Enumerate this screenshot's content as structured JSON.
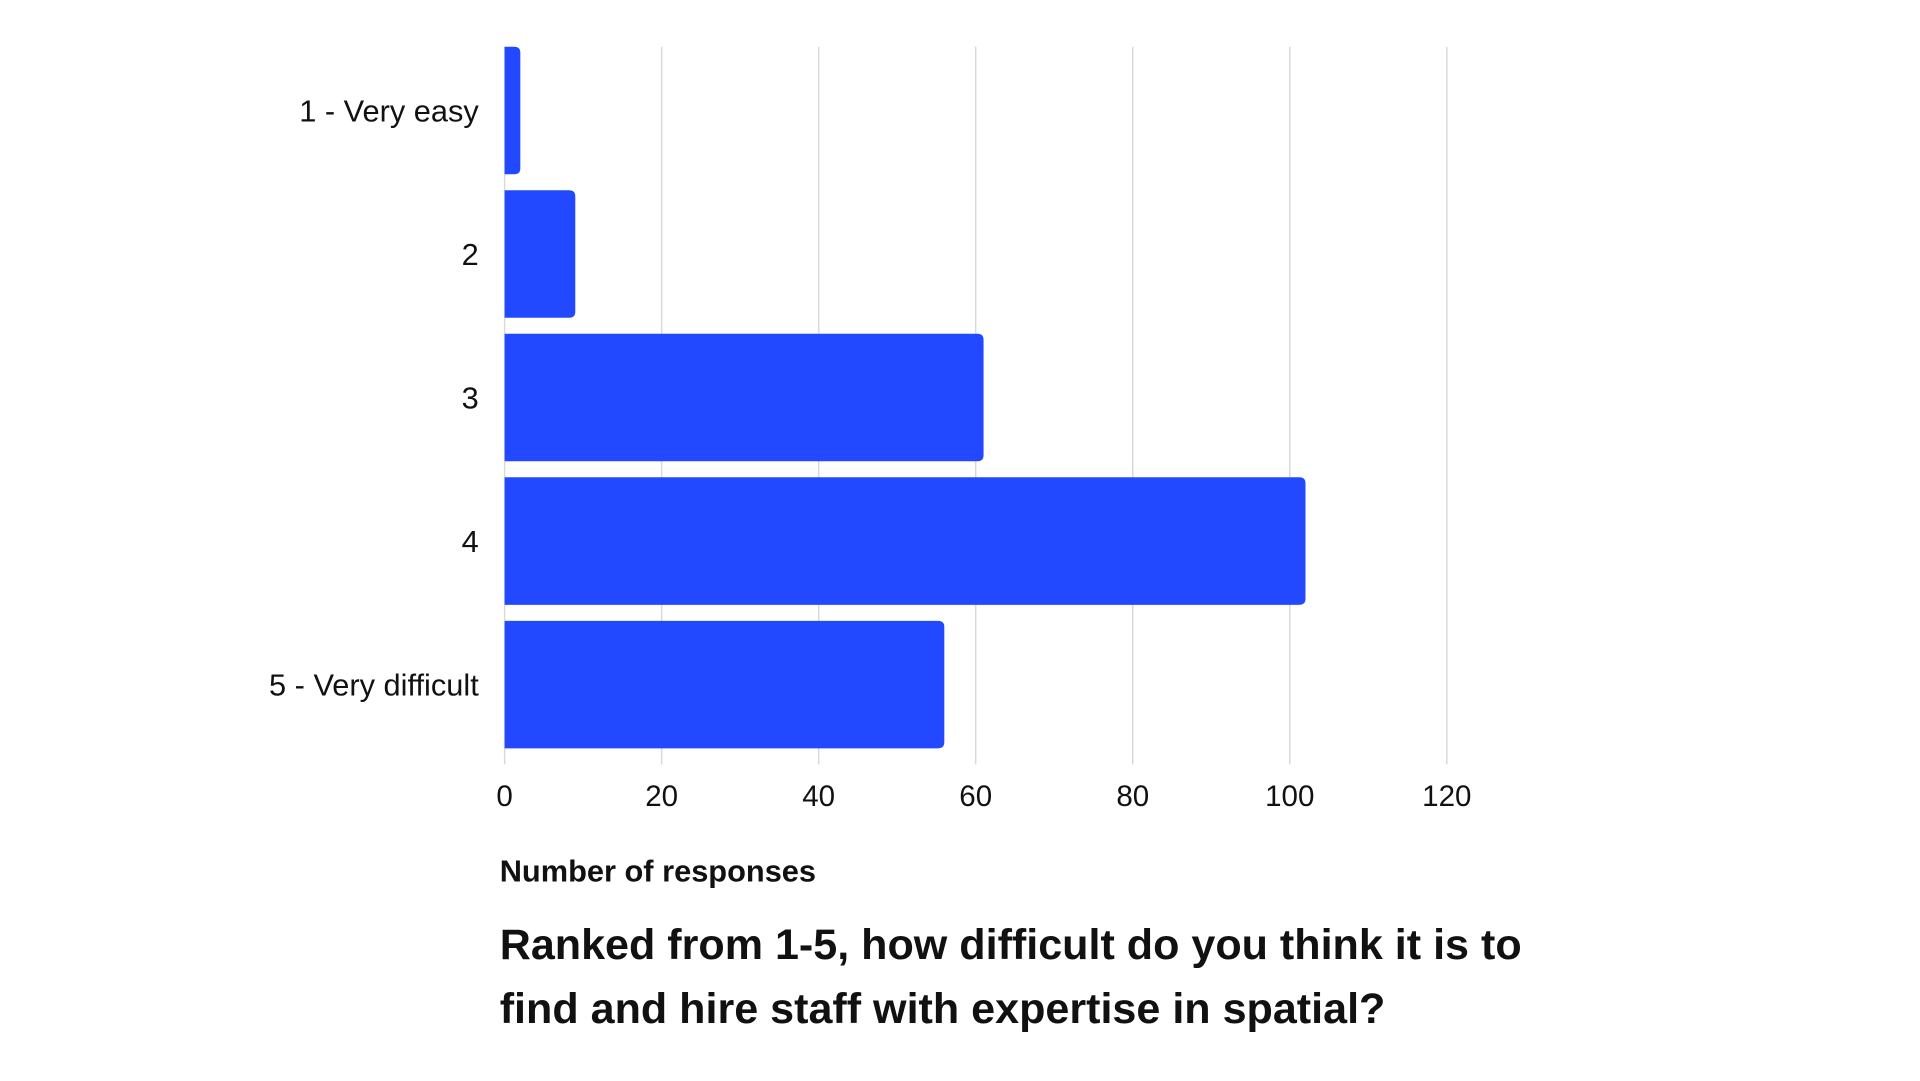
{
  "chart_data": {
    "type": "bar",
    "orientation": "horizontal",
    "categories": [
      "1 - Very easy",
      "2",
      "3",
      "4",
      "5 - Very difficult"
    ],
    "values": [
      2,
      9,
      61,
      102,
      56
    ],
    "xlabel": "Number of responses",
    "title": "Ranked from 1-5, how difficult do you think it is to find and hire staff with expertise in spatial?",
    "xlim": [
      0,
      120
    ],
    "xticks": [
      0,
      20,
      40,
      60,
      80,
      100,
      120
    ],
    "grid": "vertical",
    "bar_color": "#2249ff",
    "grid_color": "#d9d9d9"
  }
}
